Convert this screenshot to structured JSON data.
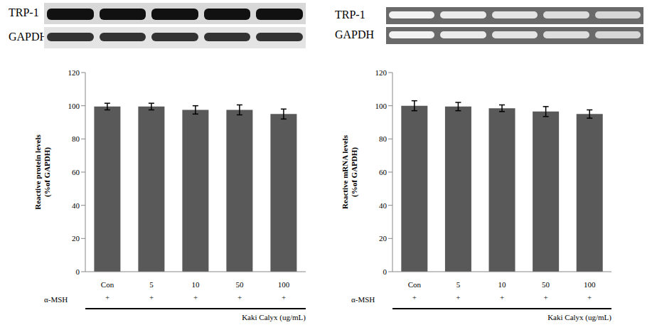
{
  "chart_data": [
    {
      "type": "bar",
      "blot_labels": [
        "TRP-1",
        "GAPDH"
      ],
      "y_label": [
        "Reactive protein levels",
        "(%of GAPDH)"
      ],
      "categories": [
        "Con",
        "5",
        "10",
        "50",
        "100"
      ],
      "values": [
        99.5,
        99.5,
        97.5,
        97.5,
        95
      ],
      "errors": [
        2,
        2,
        2.5,
        3,
        3
      ],
      "color": "#595959",
      "ylim": [
        0,
        120
      ],
      "yticks": [
        0,
        20,
        40,
        60,
        80,
        100,
        120
      ],
      "grid": false,
      "treatment": {
        "label": "α-MSH",
        "values": [
          "+",
          "+",
          "+",
          "+",
          "+"
        ]
      },
      "x_label": "Kaki Calyx (ug/mL)"
    },
    {
      "type": "bar",
      "blot_labels": [
        "TRP-1",
        "GAPDH"
      ],
      "y_label": [
        "Reactive mRNA levels",
        "(%of GAPDH)"
      ],
      "categories": [
        "Con",
        "5",
        "10",
        "50",
        "100"
      ],
      "values": [
        100,
        99.5,
        98.5,
        96.5,
        95
      ],
      "errors": [
        3,
        2.5,
        2,
        3,
        2.5
      ],
      "color": "#595959",
      "ylim": [
        0,
        120
      ],
      "yticks": [
        0,
        20,
        40,
        60,
        80,
        100,
        120
      ],
      "grid": false,
      "treatment": {
        "label": "α-MSH",
        "values": [
          "+",
          "+",
          "+",
          "+",
          "+"
        ]
      },
      "x_label": "Kaki Calyx (ug/mL)"
    }
  ]
}
